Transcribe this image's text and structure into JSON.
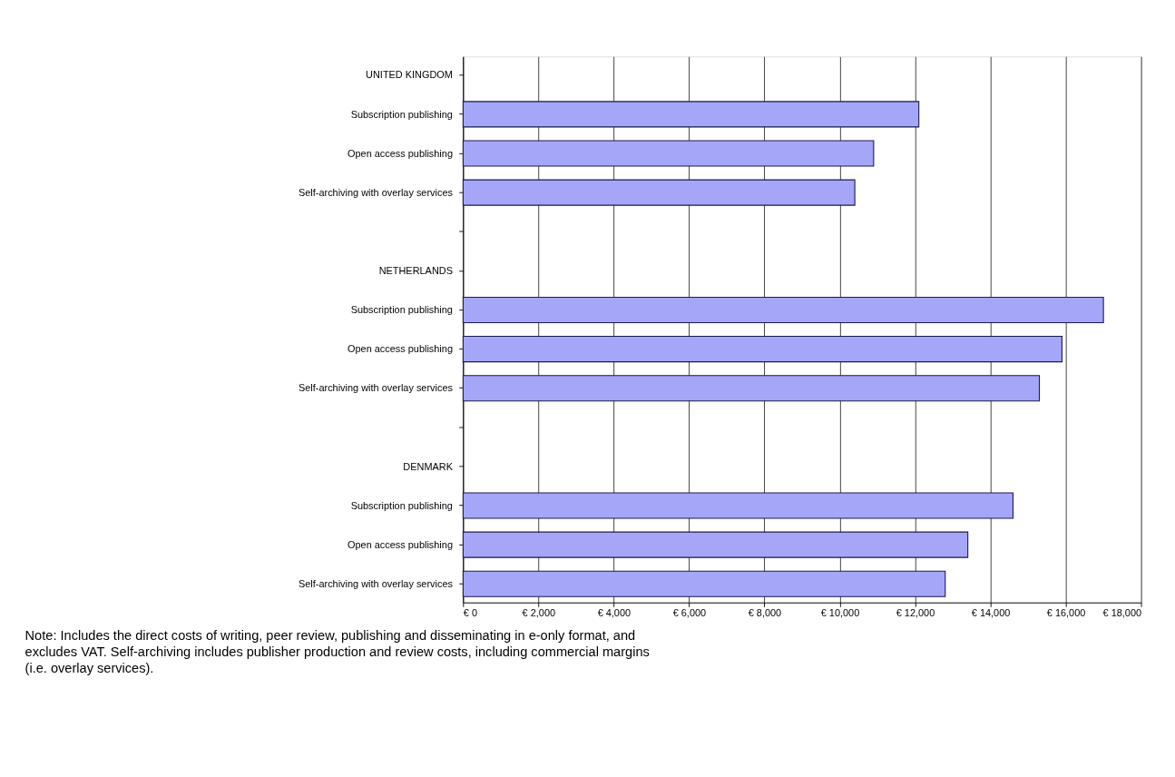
{
  "chart_data": {
    "type": "bar",
    "orientation": "horizontal",
    "categories": [
      "UNITED KINGDOM",
      "Subscription publishing",
      "Open access publishing",
      "Self-archiving with overlay services",
      null,
      "NETHERLANDS",
      "Subscription publishing",
      "Open access publishing",
      "Self-archiving with overlay services",
      null,
      "DENMARK",
      "Subscription publishing",
      "Open access publishing",
      "Self-archiving with overlay services"
    ],
    "values": [
      null,
      12100,
      10900,
      10400,
      null,
      null,
      17000,
      15900,
      15300,
      null,
      null,
      14600,
      13400,
      12800
    ],
    "color": "#a6a6f8",
    "xlim": [
      0,
      18000
    ],
    "xticks": [
      {
        "value": 0,
        "label": "€ 0"
      },
      {
        "value": 2000,
        "label": "€ 2,000"
      },
      {
        "value": 4000,
        "label": "€ 4,000"
      },
      {
        "value": 6000,
        "label": "€ 6,000"
      },
      {
        "value": 8000,
        "label": "€ 8,000"
      },
      {
        "value": 10000,
        "label": "€ 10,000"
      },
      {
        "value": 12000,
        "label": "€ 12,000"
      },
      {
        "value": 14000,
        "label": "€ 14,000"
      },
      {
        "value": 16000,
        "label": "€ 16,000"
      },
      {
        "value": 18000,
        "label": "€ 18,000"
      }
    ],
    "grid": "x",
    "annotations": [
      "Note: Includes the direct costs of writing, peer review, publishing and disseminating in e-only format, and excludes VAT. Self-archiving includes publisher production and review costs, including commercial margins (i.e. overlay services)."
    ]
  }
}
